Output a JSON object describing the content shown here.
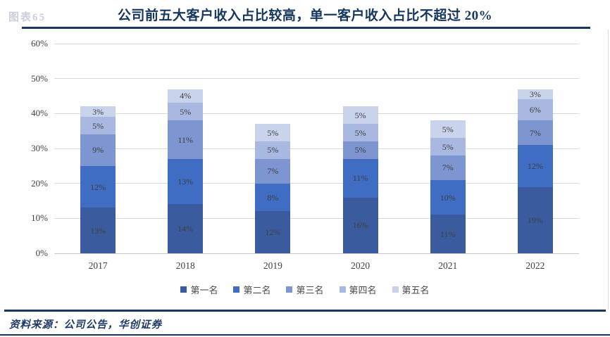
{
  "watermark": "图表65",
  "title": "公司前五大客户收入占比较高，单一客户收入占比不超过 20%",
  "source": "资料来源：公司公告，华创证券",
  "accent_navy": "#17375e",
  "chart_data": {
    "type": "bar",
    "stacked": true,
    "title": "公司前五大客户收入占比较高，单一客户收入占比不超过 20%",
    "categories": [
      "2017",
      "2018",
      "2019",
      "2020",
      "2021",
      "2022"
    ],
    "series": [
      {
        "name": "第一名",
        "color": "#3a5c9e",
        "values": [
          13,
          14,
          12,
          16,
          11,
          19
        ]
      },
      {
        "name": "第二名",
        "color": "#3e6dc3",
        "values": [
          12,
          13,
          8,
          11,
          10,
          12
        ]
      },
      {
        "name": "第三名",
        "color": "#7d95d0",
        "values": [
          9,
          11,
          7,
          5,
          7,
          7
        ]
      },
      {
        "name": "第四名",
        "color": "#a8b8e0",
        "values": [
          5,
          5,
          5,
          5,
          5,
          6
        ]
      },
      {
        "name": "第五名",
        "color": "#c9d3ec",
        "values": [
          3,
          4,
          5,
          5,
          5,
          3
        ]
      }
    ],
    "bar_label_format": "percent",
    "xlabel": "",
    "ylabel": "",
    "ylim": [
      0,
      60
    ],
    "ytick_step": 10,
    "yticks": [
      "0%",
      "10%",
      "20%",
      "30%",
      "40%",
      "50%",
      "60%"
    ],
    "grid": true,
    "legend_position": "bottom"
  }
}
